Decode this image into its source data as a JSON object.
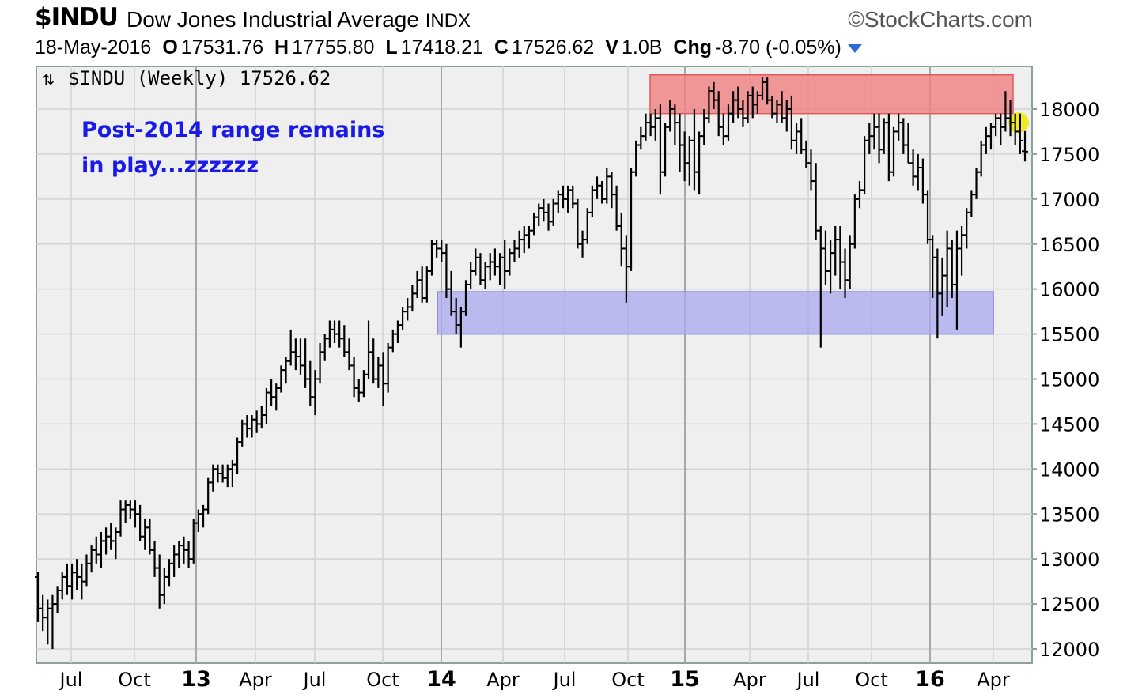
{
  "header": {
    "symbol": "$INDU",
    "name": "Dow Jones Industrial Average",
    "exchange": "INDX",
    "brand": "©StockCharts.com",
    "date": "18-May-2016",
    "open_label": "O",
    "open": "17531.76",
    "high_label": "H",
    "high": "17755.80",
    "low_label": "L",
    "low": "17418.21",
    "close_label": "C",
    "close": "17526.62",
    "volume_label": "V",
    "volume": "1.0B",
    "change_label": "Chg",
    "change": "-8.70 (-0.05%)"
  },
  "legend": {
    "icon": "ohlc-bar-icon",
    "text": "$INDU (Weekly) 17526.62"
  },
  "chart_data": {
    "type": "bar",
    "subtype": "ohlc-weekly",
    "title": "",
    "xlabel": "",
    "ylabel": "",
    "ylim": [
      11950,
      18400
    ],
    "y_ticks": [
      12000,
      12500,
      13000,
      13500,
      14000,
      14500,
      15000,
      15500,
      16000,
      16500,
      17000,
      17500,
      18000
    ],
    "x_ticks": [
      {
        "label": "Jul",
        "year": false
      },
      {
        "label": "Oct",
        "year": false
      },
      {
        "label": "13",
        "year": true
      },
      {
        "label": "Apr",
        "year": false
      },
      {
        "label": "Jul",
        "year": false
      },
      {
        "label": "Oct",
        "year": false
      },
      {
        "label": "14",
        "year": true
      },
      {
        "label": "Apr",
        "year": false
      },
      {
        "label": "Jul",
        "year": false
      },
      {
        "label": "Oct",
        "year": false
      },
      {
        "label": "15",
        "year": true
      },
      {
        "label": "Apr",
        "year": false
      },
      {
        "label": "Jul",
        "year": false
      },
      {
        "label": "Oct",
        "year": false
      },
      {
        "label": "16",
        "year": true
      },
      {
        "label": "Apr",
        "year": false
      }
    ],
    "grid": true,
    "y_axis_side": "right",
    "annotation": {
      "lines": [
        "Post-2014 range remains",
        "in play...zzzzzz"
      ],
      "color": "#1a1ae6"
    },
    "zones": [
      {
        "name": "resistance",
        "color": "#f08080",
        "from": "2014-10",
        "to": "2016-04",
        "low": 17950,
        "high": 18380
      },
      {
        "name": "support",
        "color": "#a8a8ee",
        "from": "2014-01",
        "to": "2016-04",
        "low": 15500,
        "high": 15970
      }
    ],
    "highlight_color": "#f2e600",
    "bar_color": "#000000",
    "bars": [
      [
        12800,
        12860,
        12300,
        12450
      ],
      [
        12450,
        12600,
        12200,
        12350
      ],
      [
        12350,
        12550,
        12050,
        12450
      ],
      [
        12450,
        12600,
        12000,
        12500
      ],
      [
        12500,
        12700,
        12400,
        12650
      ],
      [
        12650,
        12850,
        12550,
        12800
      ],
      [
        12800,
        12950,
        12600,
        12700
      ],
      [
        12700,
        12950,
        12550,
        12850
      ],
      [
        12850,
        13000,
        12650,
        12800
      ],
      [
        12800,
        12950,
        12550,
        12750
      ],
      [
        12750,
        13050,
        12700,
        12950
      ],
      [
        12950,
        13150,
        12850,
        13100
      ],
      [
        13100,
        13250,
        12950,
        13050
      ],
      [
        13050,
        13300,
        12900,
        13200
      ],
      [
        13200,
        13350,
        13050,
        13250
      ],
      [
        13250,
        13400,
        13100,
        13200
      ],
      [
        13200,
        13350,
        13000,
        13300
      ],
      [
        13300,
        13650,
        13250,
        13550
      ],
      [
        13550,
        13650,
        13400,
        13600
      ],
      [
        13600,
        13650,
        13450,
        13550
      ],
      [
        13550,
        13650,
        13350,
        13500
      ],
      [
        13500,
        13600,
        13200,
        13250
      ],
      [
        13250,
        13450,
        13100,
        13350
      ],
      [
        13350,
        13450,
        13050,
        13100
      ],
      [
        13100,
        13200,
        12800,
        12900
      ],
      [
        12900,
        13050,
        12450,
        12600
      ],
      [
        12600,
        12900,
        12500,
        12800
      ],
      [
        12800,
        13000,
        12700,
        12950
      ],
      [
        12950,
        13150,
        12800,
        13050
      ],
      [
        13050,
        13200,
        12900,
        13150
      ],
      [
        13150,
        13250,
        12950,
        13100
      ],
      [
        13100,
        13200,
        12900,
        13000
      ],
      [
        13000,
        13450,
        12950,
        13400
      ],
      [
        13400,
        13550,
        13300,
        13500
      ],
      [
        13500,
        13600,
        13350,
        13550
      ],
      [
        13550,
        13900,
        13500,
        13850
      ],
      [
        13850,
        14050,
        13750,
        14000
      ],
      [
        14000,
        14050,
        13850,
        13950
      ],
      [
        13950,
        14050,
        13850,
        13900
      ],
      [
        13900,
        14050,
        13800,
        14000
      ],
      [
        14000,
        14100,
        13800,
        14050
      ],
      [
        14050,
        14350,
        13950,
        14300
      ],
      [
        14300,
        14550,
        14250,
        14500
      ],
      [
        14500,
        14600,
        14350,
        14450
      ],
      [
        14450,
        14600,
        14350,
        14550
      ],
      [
        14550,
        14650,
        14400,
        14500
      ],
      [
        14500,
        14700,
        14450,
        14600
      ],
      [
        14600,
        14900,
        14500,
        14850
      ],
      [
        14850,
        15000,
        14700,
        14800
      ],
      [
        14800,
        14950,
        14650,
        14900
      ],
      [
        14900,
        15150,
        14850,
        15100
      ],
      [
        15100,
        15250,
        14950,
        15200
      ],
      [
        15200,
        15550,
        15150,
        15300
      ],
      [
        15300,
        15450,
        15100,
        15250
      ],
      [
        15250,
        15450,
        15050,
        15150
      ],
      [
        15150,
        15450,
        14900,
        15000
      ],
      [
        15000,
        15200,
        14700,
        14800
      ],
      [
        14800,
        15100,
        14600,
        15000
      ],
      [
        15000,
        15400,
        14950,
        15300
      ],
      [
        15300,
        15500,
        15200,
        15450
      ],
      [
        15450,
        15650,
        15350,
        15550
      ],
      [
        15550,
        15650,
        15400,
        15500
      ],
      [
        15500,
        15650,
        15350,
        15450
      ],
      [
        15450,
        15600,
        15250,
        15300
      ],
      [
        15300,
        15450,
        15100,
        15150
      ],
      [
        15150,
        15250,
        14800,
        14900
      ],
      [
        14900,
        15000,
        14750,
        14850
      ],
      [
        14850,
        15100,
        14800,
        15050
      ],
      [
        15050,
        15650,
        15000,
        15300
      ],
      [
        15300,
        15450,
        14950,
        15000
      ],
      [
        15000,
        15250,
        14900,
        15150
      ],
      [
        15150,
        15300,
        14700,
        14950
      ],
      [
        14950,
        15400,
        14850,
        15350
      ],
      [
        15350,
        15550,
        15300,
        15500
      ],
      [
        15500,
        15650,
        15400,
        15600
      ],
      [
        15600,
        15800,
        15550,
        15750
      ],
      [
        15750,
        15900,
        15650,
        15800
      ],
      [
        15800,
        16050,
        15750,
        15950
      ],
      [
        15950,
        16200,
        15900,
        16100
      ],
      [
        16100,
        16250,
        15850,
        15900
      ],
      [
        15900,
        16250,
        15850,
        16200
      ],
      [
        16200,
        16550,
        16150,
        16500
      ],
      [
        16500,
        16550,
        16350,
        16450
      ],
      [
        16450,
        16550,
        16300,
        16400
      ],
      [
        16400,
        16500,
        15900,
        16000
      ],
      [
        16000,
        16200,
        15700,
        15750
      ],
      [
        15750,
        15900,
        15500,
        15600
      ],
      [
        15600,
        15800,
        15350,
        15750
      ],
      [
        15750,
        16100,
        15700,
        16050
      ],
      [
        16050,
        16300,
        16000,
        16200
      ],
      [
        16200,
        16450,
        16150,
        16350
      ],
      [
        16350,
        16400,
        16050,
        16100
      ],
      [
        16100,
        16300,
        16000,
        16250
      ],
      [
        16250,
        16400,
        16100,
        16300
      ],
      [
        16300,
        16450,
        16150,
        16250
      ],
      [
        16250,
        16400,
        16050,
        16350
      ],
      [
        16350,
        16550,
        16000,
        16200
      ],
      [
        16200,
        16450,
        16150,
        16400
      ],
      [
        16400,
        16550,
        16300,
        16450
      ],
      [
        16450,
        16650,
        16350,
        16550
      ],
      [
        16550,
        16700,
        16400,
        16600
      ],
      [
        16600,
        16700,
        16450,
        16650
      ],
      [
        16650,
        16850,
        16600,
        16800
      ],
      [
        16800,
        16950,
        16700,
        16900
      ],
      [
        16900,
        17000,
        16750,
        16850
      ],
      [
        16850,
        16950,
        16650,
        16750
      ],
      [
        16750,
        17000,
        16700,
        16950
      ],
      [
        16950,
        17100,
        16850,
        17050
      ],
      [
        17050,
        17150,
        16900,
        17000
      ],
      [
        17000,
        17150,
        16850,
        17100
      ],
      [
        17100,
        17150,
        16900,
        16950
      ],
      [
        16950,
        17000,
        16450,
        16500
      ],
      [
        16500,
        16650,
        16350,
        16550
      ],
      [
        16550,
        16900,
        16500,
        16850
      ],
      [
        16850,
        17150,
        16800,
        17100
      ],
      [
        17100,
        17250,
        17000,
        17150
      ],
      [
        17150,
        17200,
        16950,
        17000
      ],
      [
        17000,
        17350,
        16950,
        17250
      ],
      [
        17250,
        17300,
        16900,
        17050
      ],
      [
        17050,
        17150,
        16650,
        16700
      ],
      [
        16700,
        16850,
        16250,
        16450
      ],
      [
        16450,
        16600,
        15850,
        16250
      ],
      [
        16250,
        17350,
        16200,
        17300
      ],
      [
        17300,
        17650,
        17250,
        17600
      ],
      [
        17600,
        17800,
        17550,
        17700
      ],
      [
        17700,
        17950,
        17650,
        17850
      ],
      [
        17850,
        17950,
        17700,
        17800
      ],
      [
        17800,
        18000,
        17650,
        17900
      ],
      [
        17900,
        18050,
        17050,
        17300
      ],
      [
        17300,
        17850,
        17250,
        17800
      ],
      [
        17800,
        18100,
        17750,
        18000
      ],
      [
        18000,
        18050,
        17600,
        17850
      ],
      [
        17850,
        17950,
        17300,
        17600
      ],
      [
        17600,
        17750,
        17200,
        17400
      ],
      [
        17400,
        17700,
        17150,
        17650
      ],
      [
        17650,
        18000,
        17100,
        17300
      ],
      [
        17300,
        17750,
        17050,
        17700
      ],
      [
        17700,
        18000,
        17600,
        17900
      ],
      [
        17900,
        18250,
        17850,
        18200
      ],
      [
        18200,
        18300,
        18000,
        18100
      ],
      [
        18100,
        18200,
        17700,
        17800
      ],
      [
        17800,
        17950,
        17600,
        17700
      ],
      [
        17700,
        18050,
        17650,
        17950
      ],
      [
        17950,
        18200,
        17850,
        18100
      ],
      [
        18100,
        18250,
        17900,
        18000
      ],
      [
        18000,
        18100,
        17800,
        17900
      ],
      [
        17900,
        18200,
        17850,
        18150
      ],
      [
        18150,
        18250,
        17900,
        18050
      ],
      [
        18050,
        18200,
        17950,
        18150
      ],
      [
        18150,
        18350,
        18100,
        18300
      ],
      [
        18300,
        18350,
        18050,
        18100
      ],
      [
        18100,
        18150,
        17900,
        17950
      ],
      [
        17950,
        18100,
        17850,
        18050
      ],
      [
        18050,
        18200,
        17850,
        17900
      ],
      [
        17900,
        18100,
        17750,
        18000
      ],
      [
        18000,
        18150,
        17550,
        17650
      ],
      [
        17650,
        17850,
        17500,
        17750
      ],
      [
        17750,
        17900,
        17500,
        17550
      ],
      [
        17550,
        17650,
        17350,
        17400
      ],
      [
        17400,
        17550,
        17100,
        17200
      ],
      [
        17200,
        17400,
        16550,
        16650
      ],
      [
        16650,
        16700,
        15350,
        16450
      ],
      [
        16450,
        16650,
        16050,
        16200
      ],
      [
        16200,
        16550,
        15950,
        16400
      ],
      [
        16400,
        16700,
        16150,
        16550
      ],
      [
        16550,
        16700,
        16000,
        16300
      ],
      [
        16300,
        16450,
        15900,
        16100
      ],
      [
        16100,
        16600,
        16000,
        16500
      ],
      [
        16500,
        17050,
        16450,
        17000
      ],
      [
        17000,
        17200,
        16900,
        17100
      ],
      [
        17100,
        17700,
        17050,
        17650
      ],
      [
        17650,
        17850,
        17500,
        17700
      ],
      [
        17700,
        17950,
        17550,
        17800
      ],
      [
        17800,
        17950,
        17400,
        17550
      ],
      [
        17550,
        17900,
        17500,
        17850
      ],
      [
        17850,
        17950,
        17200,
        17300
      ],
      [
        17300,
        17800,
        17250,
        17750
      ],
      [
        17750,
        17950,
        17650,
        17850
      ],
      [
        17850,
        17900,
        17500,
        17600
      ],
      [
        17600,
        17850,
        17400,
        17400
      ],
      [
        17400,
        17550,
        17150,
        17250
      ],
      [
        17250,
        17500,
        17100,
        17350
      ],
      [
        17350,
        17450,
        16950,
        17050
      ],
      [
        17050,
        17100,
        16500,
        16550
      ],
      [
        16550,
        16600,
        15900,
        16350
      ],
      [
        16350,
        16450,
        15450,
        15950
      ],
      [
        15950,
        16350,
        15700,
        16150
      ],
      [
        16150,
        16650,
        15800,
        16450
      ],
      [
        16450,
        16550,
        15900,
        16050
      ],
      [
        16050,
        16650,
        15550,
        16450
      ],
      [
        16450,
        16700,
        16150,
        16600
      ],
      [
        16600,
        16900,
        16450,
        16850
      ],
      [
        16850,
        17100,
        16800,
        17050
      ],
      [
        17050,
        17350,
        17000,
        17300
      ],
      [
        17300,
        17650,
        17250,
        17600
      ],
      [
        17600,
        17800,
        17500,
        17700
      ],
      [
        17700,
        17850,
        17550,
        17800
      ],
      [
        17800,
        17950,
        17700,
        17900
      ],
      [
        17900,
        17950,
        17600,
        17800
      ],
      [
        17800,
        18200,
        17750,
        17900
      ],
      [
        17900,
        18100,
        17700,
        17850
      ],
      [
        17850,
        17950,
        17600,
        17750
      ],
      [
        17750,
        17950,
        17500,
        17650
      ],
      [
        17531.76,
        17755.8,
        17418.21,
        17526.62
      ]
    ]
  }
}
